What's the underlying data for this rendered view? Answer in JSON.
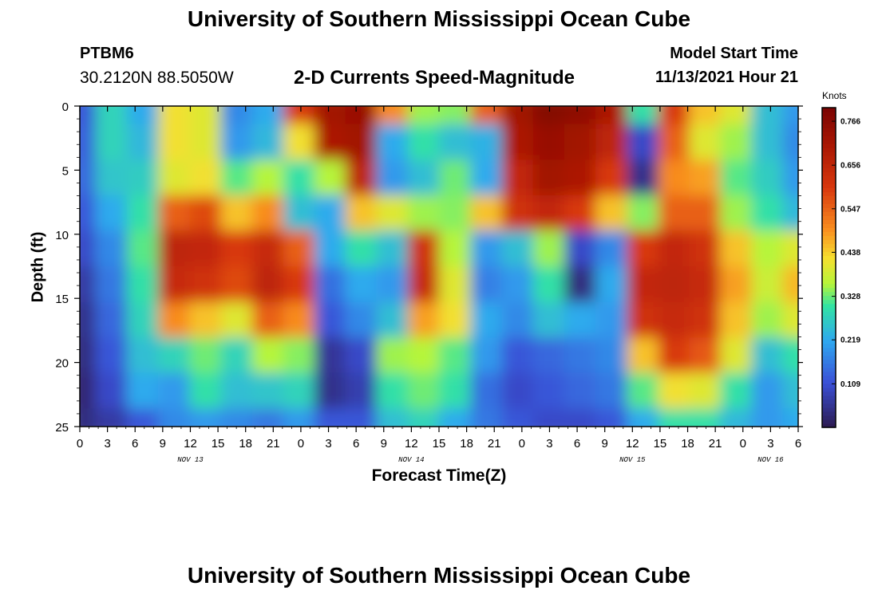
{
  "header": {
    "title": "University of Southern Mississippi Ocean Cube",
    "station_id": "PTBM6",
    "station_coords": "30.2120N  88.5050W",
    "subtitle": "2-D Currents Speed-Magnitude",
    "model_start_label": "Model Start Time",
    "model_start_value": "11/13/2021 Hour 21"
  },
  "footer": {
    "title": "University of Southern Mississippi Ocean Cube"
  },
  "chart_data": {
    "type": "heatmap",
    "title": "2-D Currents Speed-Magnitude",
    "xlabel": "Forecast Time(Z)",
    "ylabel": "Depth (ft)",
    "x_unit": "hours since Nov 13 00Z",
    "x_range": [
      0,
      78
    ],
    "y_range": [
      0,
      25
    ],
    "y_ticks": [
      "0",
      "5",
      "10",
      "15",
      "20",
      "25"
    ],
    "x_ticks": [
      {
        "hour": 0,
        "label": "0"
      },
      {
        "hour": 3,
        "label": "3"
      },
      {
        "hour": 6,
        "label": "6"
      },
      {
        "hour": 9,
        "label": "9"
      },
      {
        "hour": 12,
        "label": "12"
      },
      {
        "hour": 15,
        "label": "15"
      },
      {
        "hour": 18,
        "label": "18"
      },
      {
        "hour": 21,
        "label": "21"
      },
      {
        "hour": 24,
        "label": "0"
      },
      {
        "hour": 27,
        "label": "3"
      },
      {
        "hour": 30,
        "label": "6"
      },
      {
        "hour": 33,
        "label": "9"
      },
      {
        "hour": 36,
        "label": "12"
      },
      {
        "hour": 39,
        "label": "15"
      },
      {
        "hour": 42,
        "label": "18"
      },
      {
        "hour": 45,
        "label": "21"
      },
      {
        "hour": 48,
        "label": "0"
      },
      {
        "hour": 51,
        "label": "3"
      },
      {
        "hour": 54,
        "label": "6"
      },
      {
        "hour": 57,
        "label": "9"
      },
      {
        "hour": 60,
        "label": "12"
      },
      {
        "hour": 63,
        "label": "15"
      },
      {
        "hour": 66,
        "label": "18"
      },
      {
        "hour": 69,
        "label": "21"
      },
      {
        "hour": 72,
        "label": "0"
      },
      {
        "hour": 75,
        "label": "3"
      },
      {
        "hour": 78,
        "label": "6"
      }
    ],
    "date_labels": [
      {
        "hour": 12,
        "label": "NOV 13"
      },
      {
        "hour": 36,
        "label": "NOV 14"
      },
      {
        "hour": 60,
        "label": "NOV 15"
      },
      {
        "hour": 75,
        "label": "NOV 16"
      }
    ],
    "colorbar": {
      "unit": "Knots",
      "min": 0.0,
      "max": 0.8,
      "ticks": [
        "0.766",
        "0.656",
        "0.547",
        "0.438",
        "0.328",
        "0.219",
        "0.109"
      ]
    },
    "grid": {
      "cols": 24,
      "rows": 10,
      "col_hours": [
        0,
        3.4,
        6.8,
        10.2,
        13.6,
        17,
        20.4,
        23.8,
        27.1,
        30.5,
        33.9,
        37.3,
        40.7,
        44.1,
        47.5,
        50.9,
        54.3,
        57.7,
        61.1,
        64.5,
        67.8,
        71.2,
        74.6,
        78
      ],
      "row_depths": [
        0,
        2.8,
        5.6,
        8.3,
        11.1,
        13.9,
        16.7,
        19.4,
        22.2,
        25
      ],
      "values": [
        [
          0.12,
          0.28,
          0.22,
          0.42,
          0.4,
          0.18,
          0.22,
          0.6,
          0.72,
          0.74,
          0.5,
          0.35,
          0.34,
          0.55,
          0.72,
          0.78,
          0.76,
          0.7,
          0.3,
          0.6,
          0.45,
          0.4,
          0.25,
          0.2
        ],
        [
          0.13,
          0.28,
          0.24,
          0.42,
          0.4,
          0.2,
          0.24,
          0.42,
          0.7,
          0.72,
          0.22,
          0.3,
          0.25,
          0.23,
          0.7,
          0.74,
          0.72,
          0.66,
          0.1,
          0.55,
          0.4,
          0.35,
          0.25,
          0.18
        ],
        [
          0.14,
          0.26,
          0.27,
          0.4,
          0.42,
          0.32,
          0.36,
          0.3,
          0.36,
          0.66,
          0.2,
          0.25,
          0.33,
          0.22,
          0.65,
          0.72,
          0.7,
          0.6,
          0.05,
          0.5,
          0.48,
          0.32,
          0.27,
          0.2
        ],
        [
          0.12,
          0.22,
          0.3,
          0.55,
          0.58,
          0.45,
          0.5,
          0.25,
          0.22,
          0.45,
          0.4,
          0.35,
          0.34,
          0.45,
          0.62,
          0.65,
          0.6,
          0.45,
          0.34,
          0.55,
          0.55,
          0.35,
          0.3,
          0.24
        ],
        [
          0.1,
          0.18,
          0.32,
          0.66,
          0.65,
          0.6,
          0.64,
          0.55,
          0.22,
          0.3,
          0.25,
          0.62,
          0.36,
          0.2,
          0.25,
          0.35,
          0.1,
          0.18,
          0.6,
          0.65,
          0.62,
          0.45,
          0.36,
          0.4
        ],
        [
          0.07,
          0.16,
          0.3,
          0.64,
          0.62,
          0.58,
          0.66,
          0.6,
          0.15,
          0.22,
          0.2,
          0.64,
          0.4,
          0.17,
          0.2,
          0.3,
          0.04,
          0.22,
          0.65,
          0.66,
          0.64,
          0.48,
          0.38,
          0.46
        ],
        [
          0.05,
          0.14,
          0.28,
          0.5,
          0.45,
          0.4,
          0.55,
          0.5,
          0.12,
          0.18,
          0.25,
          0.48,
          0.42,
          0.22,
          0.18,
          0.25,
          0.22,
          0.2,
          0.62,
          0.64,
          0.62,
          0.45,
          0.35,
          0.4
        ],
        [
          0.04,
          0.12,
          0.25,
          0.28,
          0.33,
          0.28,
          0.36,
          0.34,
          0.06,
          0.1,
          0.35,
          0.36,
          0.32,
          0.2,
          0.12,
          0.14,
          0.16,
          0.18,
          0.45,
          0.6,
          0.56,
          0.4,
          0.25,
          0.3
        ],
        [
          0.03,
          0.1,
          0.22,
          0.2,
          0.3,
          0.25,
          0.26,
          0.28,
          0.05,
          0.08,
          0.3,
          0.33,
          0.3,
          0.15,
          0.1,
          0.12,
          0.14,
          0.16,
          0.32,
          0.42,
          0.4,
          0.3,
          0.2,
          0.25
        ],
        [
          0.04,
          0.07,
          0.12,
          0.18,
          0.2,
          0.18,
          0.16,
          0.2,
          0.12,
          0.12,
          0.25,
          0.28,
          0.22,
          0.16,
          0.12,
          0.1,
          0.1,
          0.12,
          0.22,
          0.3,
          0.3,
          0.24,
          0.2,
          0.22
        ]
      ]
    }
  }
}
